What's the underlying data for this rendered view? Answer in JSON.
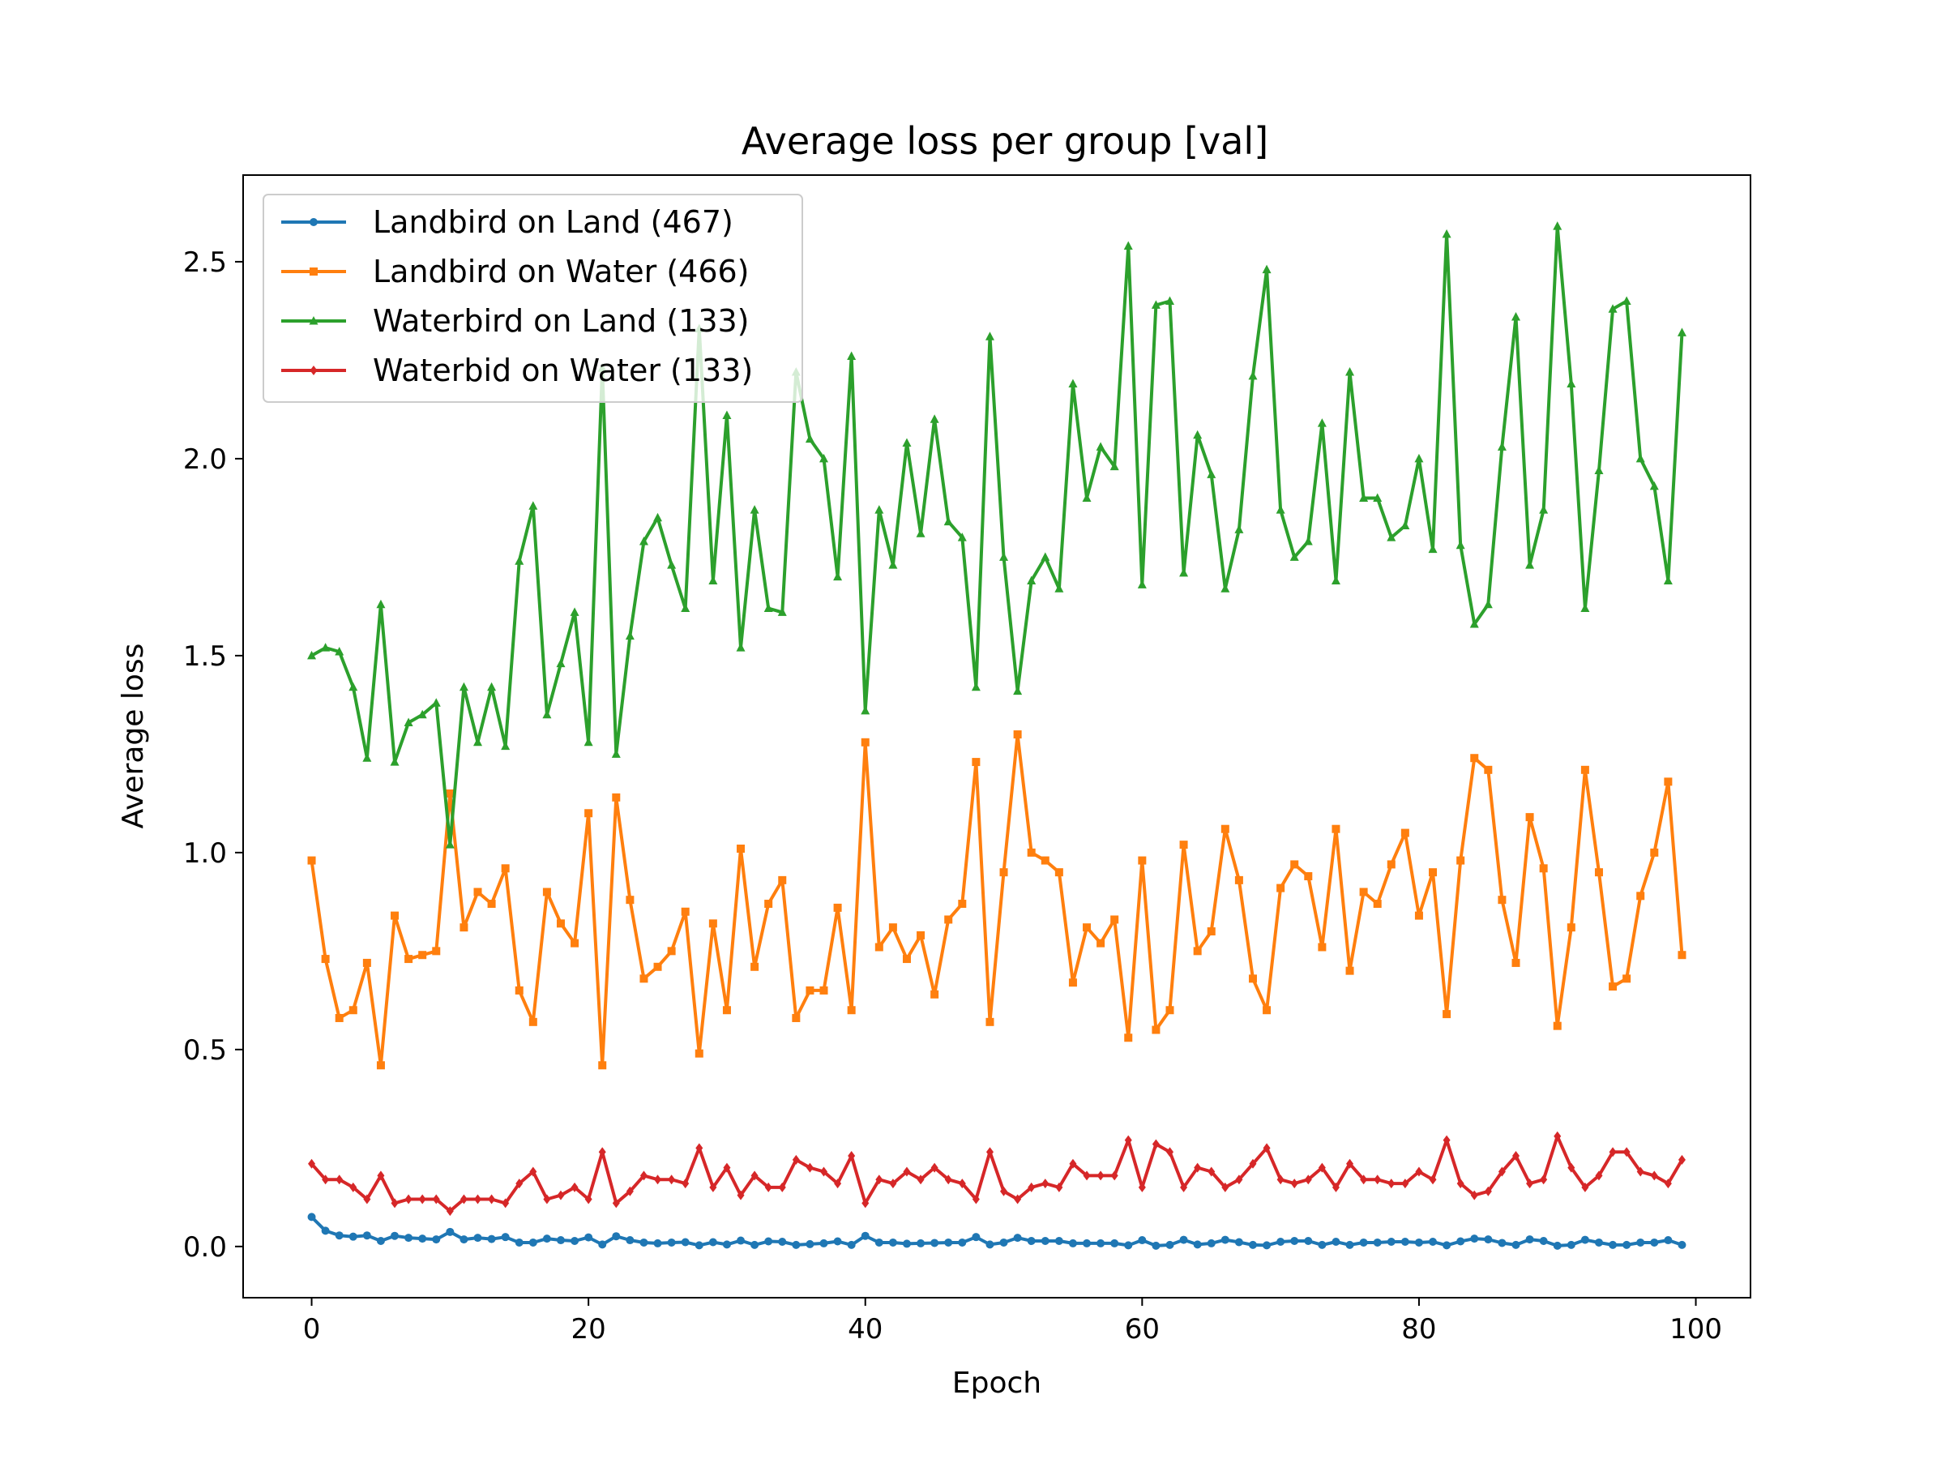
{
  "chart_data": {
    "type": "line",
    "title": "Average loss per group [val]",
    "xlabel": "Epoch",
    "ylabel": "Average loss",
    "xlim": [
      -4.95,
      103.95
    ],
    "ylim": [
      -0.13,
      2.72
    ],
    "xticks": [
      0,
      20,
      40,
      60,
      80,
      100
    ],
    "yticks": [
      0.0,
      0.5,
      1.0,
      1.5,
      2.0,
      2.5
    ],
    "xtick_labels": [
      "0",
      "20",
      "40",
      "60",
      "80",
      "100"
    ],
    "ytick_labels": [
      "0.0",
      "0.5",
      "1.0",
      "1.5",
      "2.0",
      "2.5"
    ],
    "grid": false,
    "legend_position": "top-left",
    "series": [
      {
        "name": "Landbird on Land (467)",
        "color": "#1f77b4",
        "marker": "circle",
        "values": [
          0.075,
          0.04,
          0.028,
          0.025,
          0.028,
          0.014,
          0.027,
          0.022,
          0.02,
          0.018,
          0.037,
          0.018,
          0.022,
          0.019,
          0.024,
          0.01,
          0.01,
          0.02,
          0.016,
          0.014,
          0.023,
          0.005,
          0.026,
          0.016,
          0.01,
          0.008,
          0.01,
          0.011,
          0.003,
          0.011,
          0.005,
          0.015,
          0.004,
          0.013,
          0.012,
          0.004,
          0.006,
          0.008,
          0.013,
          0.004,
          0.027,
          0.01,
          0.01,
          0.007,
          0.008,
          0.009,
          0.01,
          0.01,
          0.024,
          0.005,
          0.01,
          0.022,
          0.014,
          0.014,
          0.014,
          0.008,
          0.008,
          0.008,
          0.008,
          0.003,
          0.016,
          0.002,
          0.004,
          0.017,
          0.005,
          0.008,
          0.017,
          0.011,
          0.004,
          0.003,
          0.012,
          0.014,
          0.014,
          0.004,
          0.012,
          0.004,
          0.01,
          0.01,
          0.012,
          0.012,
          0.01,
          0.012,
          0.003,
          0.013,
          0.02,
          0.018,
          0.009,
          0.004,
          0.018,
          0.014,
          0.002,
          0.004,
          0.017,
          0.01,
          0.004,
          0.004,
          0.01,
          0.01,
          0.016,
          0.004
        ]
      },
      {
        "name": "Landbird on Water (466)",
        "color": "#ff7f0e",
        "marker": "square",
        "values": [
          0.98,
          0.73,
          0.58,
          0.6,
          0.72,
          0.46,
          0.84,
          0.73,
          0.74,
          0.75,
          1.15,
          0.81,
          0.9,
          0.87,
          0.96,
          0.65,
          0.57,
          0.9,
          0.82,
          0.77,
          1.1,
          0.46,
          1.14,
          0.88,
          0.68,
          0.71,
          0.75,
          0.85,
          0.49,
          0.82,
          0.6,
          1.01,
          0.71,
          0.87,
          0.93,
          0.58,
          0.65,
          0.65,
          0.86,
          0.6,
          1.28,
          0.76,
          0.81,
          0.73,
          0.79,
          0.64,
          0.83,
          0.87,
          1.23,
          0.57,
          0.95,
          1.3,
          1.0,
          0.98,
          0.95,
          0.67,
          0.81,
          0.77,
          0.83,
          0.53,
          0.98,
          0.55,
          0.6,
          1.02,
          0.75,
          0.8,
          1.06,
          0.93,
          0.68,
          0.6,
          0.91,
          0.97,
          0.94,
          0.76,
          1.06,
          0.7,
          0.9,
          0.87,
          0.97,
          1.05,
          0.84,
          0.95,
          0.59,
          0.98,
          1.24,
          1.21,
          0.88,
          0.72,
          1.09,
          0.96,
          0.56,
          0.81,
          1.21,
          0.95,
          0.66,
          0.68,
          0.89,
          1.0,
          1.18,
          0.74
        ]
      },
      {
        "name": "Waterbird on Land (133)",
        "color": "#2ca02c",
        "marker": "triangle",
        "values": [
          1.5,
          1.52,
          1.51,
          1.42,
          1.24,
          1.63,
          1.23,
          1.33,
          1.35,
          1.38,
          1.02,
          1.42,
          1.28,
          1.42,
          1.27,
          1.74,
          1.88,
          1.35,
          1.48,
          1.61,
          1.28,
          2.23,
          1.25,
          1.55,
          1.79,
          1.85,
          1.73,
          1.62,
          2.33,
          1.69,
          2.11,
          1.52,
          1.87,
          1.62,
          1.61,
          2.22,
          2.05,
          2.0,
          1.7,
          2.26,
          1.36,
          1.87,
          1.73,
          2.04,
          1.81,
          2.1,
          1.84,
          1.8,
          1.42,
          2.31,
          1.75,
          1.41,
          1.69,
          1.75,
          1.67,
          2.19,
          1.9,
          2.03,
          1.98,
          2.54,
          1.68,
          2.39,
          2.4,
          1.71,
          2.06,
          1.96,
          1.67,
          1.82,
          2.21,
          2.48,
          1.87,
          1.75,
          1.79,
          2.09,
          1.69,
          2.22,
          1.9,
          1.9,
          1.8,
          1.83,
          2.0,
          1.77,
          2.57,
          1.78,
          1.58,
          1.63,
          2.03,
          2.36,
          1.73,
          1.87,
          2.59,
          2.19,
          1.62,
          1.97,
          2.38,
          2.4,
          2.0,
          1.93,
          1.69,
          2.32
        ]
      },
      {
        "name": "Waterbid on Water (133)",
        "color": "#d62728",
        "marker": "diamond",
        "values": [
          0.21,
          0.17,
          0.17,
          0.15,
          0.12,
          0.18,
          0.11,
          0.12,
          0.12,
          0.12,
          0.09,
          0.12,
          0.12,
          0.12,
          0.11,
          0.16,
          0.19,
          0.12,
          0.13,
          0.15,
          0.12,
          0.24,
          0.11,
          0.14,
          0.18,
          0.17,
          0.17,
          0.16,
          0.25,
          0.15,
          0.2,
          0.13,
          0.18,
          0.15,
          0.15,
          0.22,
          0.2,
          0.19,
          0.16,
          0.23,
          0.11,
          0.17,
          0.16,
          0.19,
          0.17,
          0.2,
          0.17,
          0.16,
          0.12,
          0.24,
          0.14,
          0.12,
          0.15,
          0.16,
          0.15,
          0.21,
          0.18,
          0.18,
          0.18,
          0.27,
          0.15,
          0.26,
          0.24,
          0.15,
          0.2,
          0.19,
          0.15,
          0.17,
          0.21,
          0.25,
          0.17,
          0.16,
          0.17,
          0.2,
          0.15,
          0.21,
          0.17,
          0.17,
          0.16,
          0.16,
          0.19,
          0.17,
          0.27,
          0.16,
          0.13,
          0.14,
          0.19,
          0.23,
          0.16,
          0.17,
          0.28,
          0.2,
          0.15,
          0.18,
          0.24,
          0.24,
          0.19,
          0.18,
          0.16,
          0.22
        ]
      }
    ]
  }
}
